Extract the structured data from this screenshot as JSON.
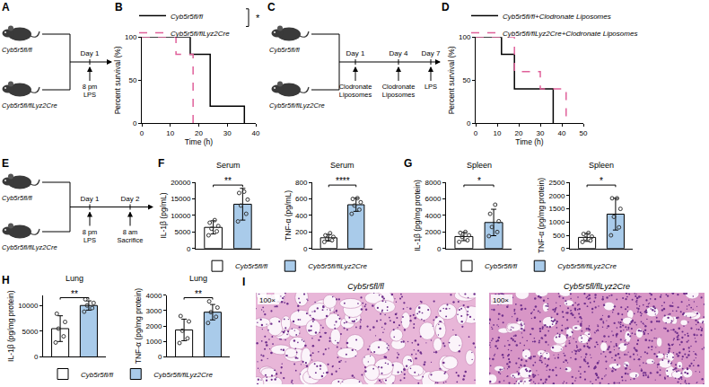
{
  "chart_data": [
    {
      "panel": "B",
      "type": "line",
      "x_label": "Time (h)",
      "y_label": "Percent survival (%)",
      "xlim": [
        0,
        40
      ],
      "xticks": [
        0,
        10,
        20,
        30,
        40
      ],
      "ylim": [
        0,
        100
      ],
      "yticks": [
        0,
        50,
        100
      ],
      "legend": "top",
      "significance": "*",
      "series": [
        {
          "name": "Cyb5r5fl/fl",
          "color": "#000000",
          "line_style": "solid",
          "x": [
            0,
            17,
            17,
            24,
            24,
            36,
            36
          ],
          "values": [
            100,
            100,
            80,
            80,
            20,
            20,
            0
          ]
        },
        {
          "name": "Cyb5r5fl/flLyz2Cre",
          "color": "#e0609a",
          "line_style": "dash",
          "x": [
            0,
            12,
            12,
            18,
            18
          ],
          "values": [
            100,
            100,
            80,
            80,
            0
          ]
        }
      ]
    },
    {
      "panel": "D",
      "type": "line",
      "x_label": "Time (h)",
      "y_label": "Percent survival (%)",
      "xlim": [
        0,
        50
      ],
      "xticks": [
        0,
        10,
        20,
        30,
        40,
        50
      ],
      "ylim": [
        0,
        100
      ],
      "yticks": [
        0,
        50,
        100
      ],
      "legend": "top",
      "series": [
        {
          "name": "Cyb5r5fl/fl+Clodronate Liposomes",
          "color": "#000000",
          "line_style": "solid",
          "x": [
            0,
            12,
            12,
            18,
            18,
            36,
            36
          ],
          "values": [
            100,
            100,
            80,
            80,
            40,
            40,
            0
          ]
        },
        {
          "name": "Cyb5r5fl/flLyz2Cre+Clodronate Liposomes",
          "color": "#e0609a",
          "line_style": "dash",
          "x": [
            0,
            18,
            18,
            30,
            30,
            42,
            42
          ],
          "values": [
            100,
            100,
            60,
            60,
            40,
            40,
            0
          ]
        }
      ]
    },
    {
      "panel": "F",
      "type": "bar",
      "title": "Serum",
      "y_label": "IL-1β (pg/mL)",
      "categories": [
        "Cyb5r5fl/fl",
        "Cyb5r5fl/flLyz2Cre"
      ],
      "values": [
        6400,
        13400
      ],
      "errors": [
        2000,
        4800
      ],
      "points": [
        [
          4000,
          5200,
          6000,
          6800,
          7800,
          8600
        ],
        [
          8200,
          10500,
          13000,
          14800,
          16800,
          17200
        ]
      ],
      "colors": [
        "#ffffff",
        "#a9cbea"
      ],
      "ylim": [
        0,
        20000
      ],
      "yticks": [
        0,
        5000,
        10000,
        15000,
        20000
      ],
      "significance": "**",
      "tick_labels": "y",
      "legend": "bottom"
    },
    {
      "type": "bar",
      "title": "Serum",
      "y_label": "TNF-α (pg/mL)",
      "categories": [
        "Cyb5r5fl/fl",
        "Cyb5r5fl/flLyz2Cre"
      ],
      "values": [
        130,
        530
      ],
      "errors": [
        40,
        80
      ],
      "points": [
        [
          80,
          100,
          120,
          140,
          160,
          185
        ],
        [
          420,
          470,
          520,
          560,
          600,
          610
        ]
      ],
      "colors": [
        "#ffffff",
        "#a9cbea"
      ],
      "ylim": [
        0,
        800
      ],
      "yticks": [
        0,
        200,
        400,
        600,
        800
      ],
      "significance": "****",
      "tick_labels": "y"
    },
    {
      "panel": "G",
      "type": "bar",
      "title": "Spleen",
      "y_label": "IL-1β (pg/mg protein)",
      "categories": [
        "Cyb5r5fl/fl",
        "Cyb5r5fl/flLyz2Cre"
      ],
      "values": [
        1450,
        3150
      ],
      "errors": [
        500,
        1600
      ],
      "points": [
        [
          800,
          1000,
          1400,
          1600,
          1900,
          2000
        ],
        [
          1500,
          2000,
          2600,
          3300,
          4200,
          5300
        ]
      ],
      "colors": [
        "#ffffff",
        "#a9cbea"
      ],
      "ylim": [
        0,
        8000
      ],
      "yticks": [
        0,
        2000,
        4000,
        6000,
        8000
      ],
      "significance": "*",
      "tick_labels": "y",
      "legend": "bottom"
    },
    {
      "type": "bar",
      "title": "Spleen",
      "y_label": "TNF-α (pg/mg protein)",
      "categories": [
        "Cyb5r5fl/fl",
        "Cyb5r5fl/flLyz2Cre"
      ],
      "values": [
        420,
        1300
      ],
      "errors": [
        150,
        600
      ],
      "points": [
        [
          250,
          300,
          380,
          450,
          550,
          590
        ],
        [
          500,
          800,
          1200,
          1500,
          1900,
          1900
        ]
      ],
      "colors": [
        "#ffffff",
        "#a9cbea"
      ],
      "ylim": [
        0,
        2500
      ],
      "yticks": [
        0,
        500,
        1000,
        1500,
        2000,
        2500
      ],
      "significance": "*",
      "tick_labels": "y"
    },
    {
      "panel": "H",
      "type": "bar",
      "title": "Lung",
      "y_label": "IL-1β (pg/mg protein)",
      "categories": [
        "Cyb5r5fl/fl",
        "Cyb5r5fl/flLyz2Cre"
      ],
      "values": [
        5500,
        10000
      ],
      "errors": [
        2500,
        900
      ],
      "points": [
        [
          2800,
          4000,
          5500,
          6800,
          8400
        ],
        [
          8800,
          9500,
          10000,
          10500,
          11200
        ]
      ],
      "colors": [
        "#ffffff",
        "#a9cbea"
      ],
      "ylim": [
        0,
        12000
      ],
      "yticks": [
        0,
        5000,
        10000
      ],
      "significance": "**",
      "tick_labels": "y",
      "legend": "bottom"
    },
    {
      "type": "bar",
      "title": "Lung",
      "y_label": "TNF-α (pg/mg protein)",
      "categories": [
        "Cyb5r5fl/fl",
        "Cyb5r5fl/flLyz2Cre"
      ],
      "values": [
        1750,
        2900
      ],
      "errors": [
        700,
        500
      ],
      "points": [
        [
          900,
          1200,
          1700,
          2300,
          2650
        ],
        [
          2200,
          2600,
          2900,
          3200,
          3600
        ]
      ],
      "colors": [
        "#ffffff",
        "#a9cbea"
      ],
      "ylim": [
        0,
        4000
      ],
      "yticks": [
        0,
        1000,
        2000,
        3000,
        4000
      ],
      "significance": "**",
      "tick_labels": "y"
    }
  ],
  "diagrams": [
    {
      "panel": "A",
      "groups": [
        "Cyb5r5fl/fl",
        "Cyb5r5fl/flLyz2Cre"
      ],
      "timeline": [
        {
          "day": "Day 1",
          "time": "8 pm",
          "event": "LPS"
        }
      ]
    },
    {
      "panel": "C",
      "groups": [
        "Cyb5r5fl/fl",
        "Cyb5r5fl/flLyz2Cre"
      ],
      "timeline": [
        {
          "day": "Day 1",
          "event": "Clodronate Liposomes"
        },
        {
          "day": "Day 4",
          "event": "Clodronate Liposomes"
        },
        {
          "day": "Day 7",
          "event": "LPS"
        }
      ]
    },
    {
      "panel": "E",
      "groups": [
        "Cyb5r5fl/fl",
        "Cyb5r5fl/flLyz2Cre"
      ],
      "timeline": [
        {
          "day": "Day 1",
          "time": "8 pm",
          "event": "LPS"
        },
        {
          "day": "Day 2",
          "time": "8 am",
          "event": "Sacrifice"
        }
      ]
    }
  ],
  "images": {
    "panel": "I",
    "items": [
      {
        "title": "Cyb5r5fl/fl",
        "magnification": "100×"
      },
      {
        "title": "Cyb5r5fl/flLyz2Cre",
        "magnification": "100×"
      }
    ]
  }
}
